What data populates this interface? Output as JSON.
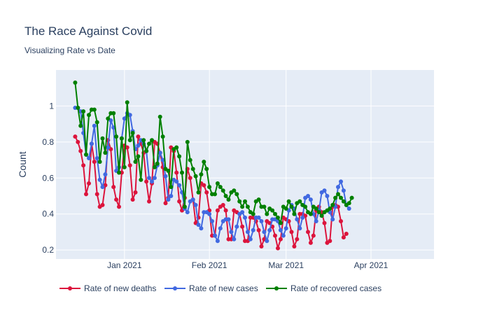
{
  "chart_data": {
    "type": "line",
    "title": "The Race Against Covid",
    "subtitle": "Visualizing Rate vs Date",
    "xlabel": "",
    "ylabel": "Count",
    "xlim": [
      "2020-12-07",
      "2021-04-24"
    ],
    "ylim": [
      0.15,
      1.2
    ],
    "grid": true,
    "legend_position": "bottom",
    "x_ticks": [
      {
        "date": "2021-01-01",
        "label": "Jan 2021"
      },
      {
        "date": "2021-02-01",
        "label": "Feb 2021"
      },
      {
        "date": "2021-03-01",
        "label": "Mar 2021"
      },
      {
        "date": "2021-04-01",
        "label": "Apr 2021"
      }
    ],
    "y_ticks": [
      0.2,
      0.4,
      0.6,
      0.8,
      1
    ],
    "x_start": "2020-12-14",
    "x_step_days": 1,
    "series": [
      {
        "name": "Rate of new deaths",
        "color": "#dc143c",
        "values": [
          0.83,
          0.8,
          0.75,
          0.67,
          0.51,
          0.57,
          0.79,
          0.69,
          0.51,
          0.44,
          0.45,
          0.56,
          0.81,
          0.76,
          0.55,
          0.48,
          0.44,
          0.63,
          0.78,
          0.77,
          0.67,
          0.48,
          0.52,
          0.83,
          0.79,
          0.74,
          0.58,
          0.47,
          0.57,
          0.8,
          0.79,
          0.74,
          0.66,
          0.46,
          0.49,
          0.77,
          0.75,
          0.63,
          0.47,
          0.42,
          0.49,
          0.65,
          0.6,
          0.48,
          0.35,
          0.38,
          0.57,
          0.56,
          0.52,
          0.42,
          0.28,
          0.28,
          0.42,
          0.44,
          0.45,
          0.42,
          0.26,
          0.26,
          0.42,
          0.41,
          0.4,
          0.33,
          0.25,
          0.25,
          0.38,
          0.38,
          0.36,
          0.31,
          0.22,
          0.26,
          0.36,
          0.35,
          0.33,
          0.28,
          0.21,
          0.26,
          0.38,
          0.37,
          0.36,
          0.3,
          0.22,
          0.26,
          0.4,
          0.4,
          0.39,
          0.3,
          0.24,
          0.28,
          0.42,
          0.44,
          0.41,
          0.35,
          0.24,
          0.25,
          0.44,
          0.45,
          0.44,
          0.36,
          0.27,
          0.29
        ]
      },
      {
        "name": "Rate of new cases",
        "color": "#4169e1",
        "values": [
          0.99,
          0.99,
          0.97,
          0.85,
          0.73,
          0.71,
          0.79,
          0.89,
          0.71,
          0.59,
          0.55,
          0.62,
          0.77,
          0.92,
          0.88,
          0.64,
          0.66,
          0.82,
          0.93,
          0.96,
          0.95,
          0.86,
          0.76,
          0.78,
          0.81,
          0.79,
          0.75,
          0.6,
          0.58,
          0.6,
          0.67,
          0.74,
          0.7,
          0.61,
          0.48,
          0.5,
          0.59,
          0.58,
          0.56,
          0.52,
          0.43,
          0.41,
          0.47,
          0.48,
          0.45,
          0.34,
          0.32,
          0.41,
          0.41,
          0.4,
          0.36,
          0.28,
          0.25,
          0.32,
          0.36,
          0.37,
          0.37,
          0.3,
          0.26,
          0.33,
          0.4,
          0.41,
          0.38,
          0.3,
          0.26,
          0.31,
          0.38,
          0.38,
          0.36,
          0.3,
          0.25,
          0.31,
          0.37,
          0.37,
          0.36,
          0.31,
          0.28,
          0.32,
          0.42,
          0.45,
          0.43,
          0.37,
          0.32,
          0.38,
          0.49,
          0.5,
          0.48,
          0.4,
          0.36,
          0.42,
          0.52,
          0.53,
          0.5,
          0.41,
          0.37,
          0.44,
          0.55,
          0.58,
          0.53,
          0.45,
          0.43
        ]
      },
      {
        "name": "Rate of recovered cases",
        "color": "#008000",
        "values": [
          1.13,
          0.99,
          0.89,
          0.97,
          0.73,
          0.95,
          0.98,
          0.98,
          0.91,
          0.69,
          0.82,
          0.74,
          0.93,
          0.96,
          0.96,
          0.83,
          0.63,
          0.82,
          0.66,
          1.02,
          0.81,
          0.85,
          0.69,
          0.72,
          0.59,
          0.81,
          0.75,
          0.79,
          0.81,
          0.66,
          0.68,
          0.94,
          0.83,
          0.65,
          0.64,
          0.55,
          0.76,
          0.77,
          0.72,
          0.63,
          0.44,
          0.8,
          0.7,
          0.65,
          0.61,
          0.52,
          0.62,
          0.69,
          0.65,
          0.55,
          0.51,
          0.51,
          0.57,
          0.55,
          0.53,
          0.5,
          0.48,
          0.52,
          0.53,
          0.51,
          0.47,
          0.44,
          0.47,
          0.44,
          0.41,
          0.4,
          0.47,
          0.48,
          0.44,
          0.44,
          0.4,
          0.43,
          0.42,
          0.4,
          0.38,
          0.35,
          0.44,
          0.43,
          0.47,
          0.44,
          0.4,
          0.46,
          0.47,
          0.45,
          0.44,
          0.41,
          0.4,
          0.44,
          0.43,
          0.41,
          0.39,
          0.41,
          0.42,
          0.43,
          0.45,
          0.49,
          0.51,
          0.49,
          0.47,
          0.45,
          0.46,
          0.49
        ]
      }
    ]
  }
}
